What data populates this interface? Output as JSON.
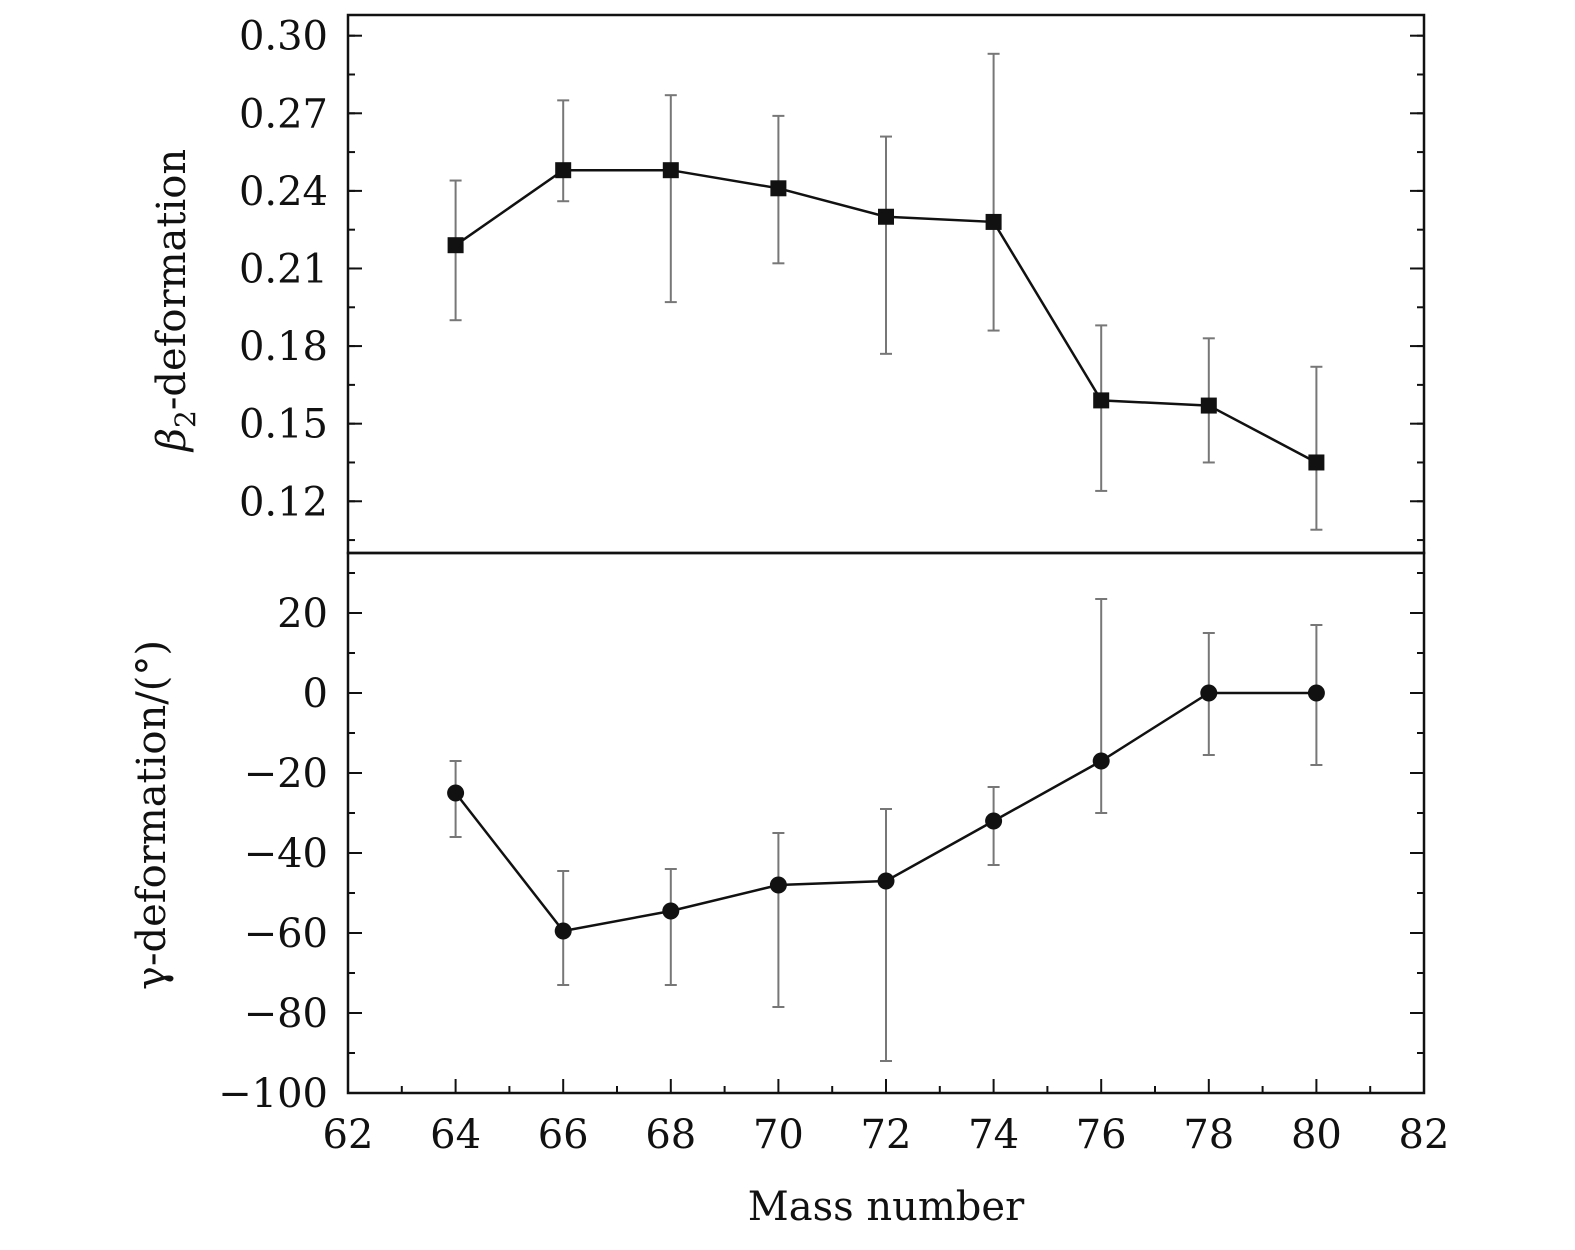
{
  "chart_data": [
    {
      "type": "line",
      "panel": "top",
      "title": "",
      "xlabel": "Mass number",
      "ylabel": "β2-deformation",
      "ylabel_main": "β",
      "ylabel_sub": "2",
      "ylabel_rest": "-deformation",
      "xlim": [
        62,
        82
      ],
      "ylim": [
        0.1,
        0.308
      ],
      "yticks": [
        0.12,
        0.15,
        0.18,
        0.21,
        0.24,
        0.27,
        0.3
      ],
      "ytick_labels": [
        "0.12",
        "0.15",
        "0.18",
        "0.21",
        "0.24",
        "0.27",
        "0.30"
      ],
      "grid": false,
      "marker": "square",
      "series": [
        {
          "x": [
            64,
            66,
            68,
            70,
            72,
            74,
            76,
            78,
            80
          ],
          "y": [
            0.219,
            0.248,
            0.248,
            0.241,
            0.23,
            0.228,
            0.159,
            0.157,
            0.135
          ],
          "y_low": [
            0.19,
            0.236,
            0.197,
            0.212,
            0.177,
            0.186,
            0.124,
            0.135,
            0.109
          ],
          "y_high": [
            0.244,
            0.275,
            0.277,
            0.269,
            0.261,
            0.293,
            0.188,
            0.183,
            0.172
          ]
        }
      ]
    },
    {
      "type": "line",
      "panel": "bottom",
      "title": "",
      "xlabel": "Mass number",
      "ylabel": "γ-deformation/(°)",
      "xlim": [
        62,
        82
      ],
      "ylim": [
        -100,
        35
      ],
      "xticks": [
        62,
        64,
        66,
        68,
        70,
        72,
        74,
        76,
        78,
        80,
        82
      ],
      "xtick_labels": [
        "62",
        "64",
        "66",
        "68",
        "70",
        "72",
        "74",
        "76",
        "78",
        "80",
        "82"
      ],
      "yticks": [
        -100,
        -80,
        -60,
        -40,
        -20,
        0,
        20
      ],
      "ytick_labels": [
        "−100",
        "−80",
        "−60",
        "−40",
        "−20",
        "0",
        "20"
      ],
      "grid": false,
      "marker": "circle",
      "series": [
        {
          "x": [
            64,
            66,
            68,
            70,
            72,
            74,
            76,
            78,
            80
          ],
          "y": [
            -25,
            -59.5,
            -54.5,
            -48,
            -47,
            -32,
            -17,
            0,
            0
          ],
          "y_low": [
            -36,
            -73,
            -73,
            -78.5,
            -92,
            -43,
            -30,
            -15.5,
            -18
          ],
          "y_high": [
            -17,
            -44.5,
            -44,
            -35,
            -29,
            -23.5,
            23.5,
            15,
            17
          ]
        }
      ]
    }
  ]
}
